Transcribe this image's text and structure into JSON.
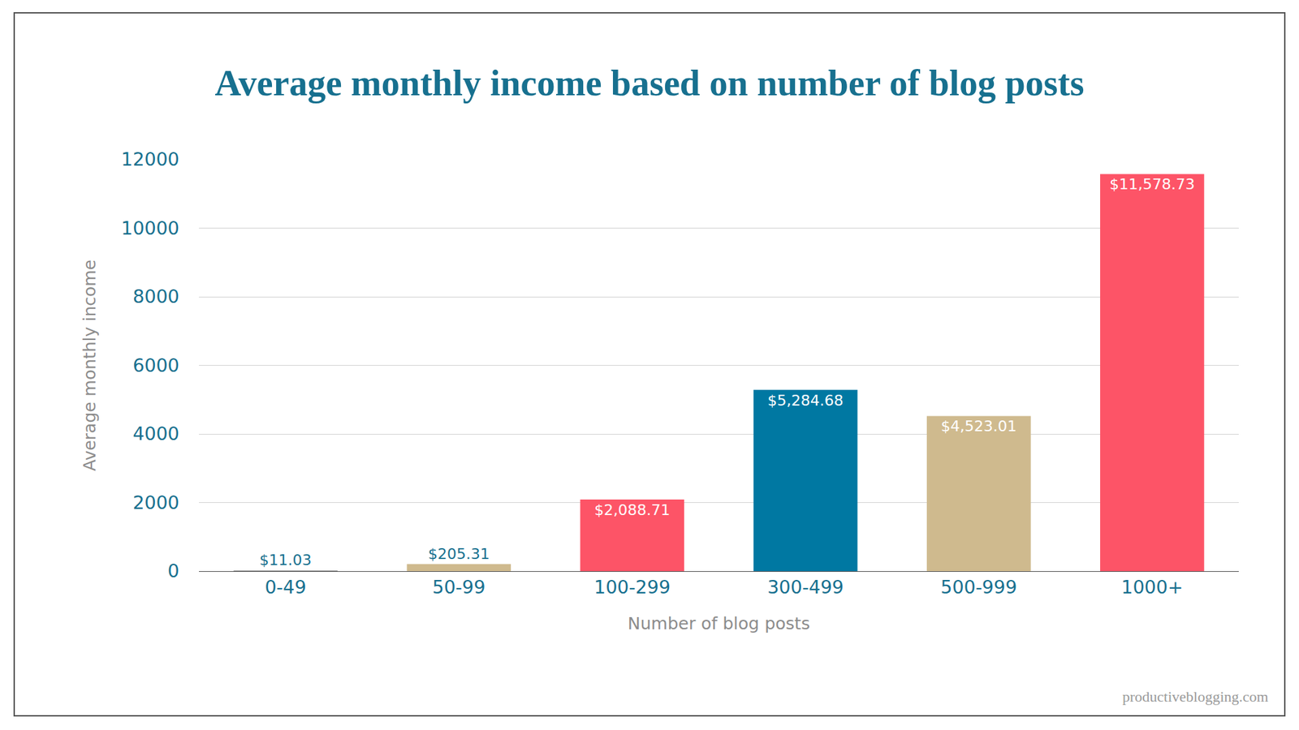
{
  "chart_data": {
    "type": "bar",
    "title": "Average monthly income based on number of blog posts",
    "x_label": "Number of blog posts",
    "y_label": "Average monthly income",
    "categories": [
      "0-49",
      "50-99",
      "100-299",
      "300-499",
      "500-999",
      "1000+"
    ],
    "values": [
      11.03,
      205.31,
      2088.71,
      5284.68,
      4523.01,
      11578.73
    ],
    "value_labels": [
      "$11.03",
      "$205.31",
      "$2,088.71",
      "$5,284.68",
      "$4,523.01",
      "$11,578.73"
    ],
    "colors": [
      "#222222",
      "#cfba8e",
      "#fd5467",
      "#0078a2",
      "#cfba8e",
      "#fd5467"
    ],
    "ylim": [
      0,
      12000
    ],
    "yticks": [
      0,
      2000,
      4000,
      6000,
      8000,
      10000,
      12000
    ],
    "grid": true,
    "data_labels": true,
    "annotations": [
      "productiveblogging.com"
    ]
  }
}
